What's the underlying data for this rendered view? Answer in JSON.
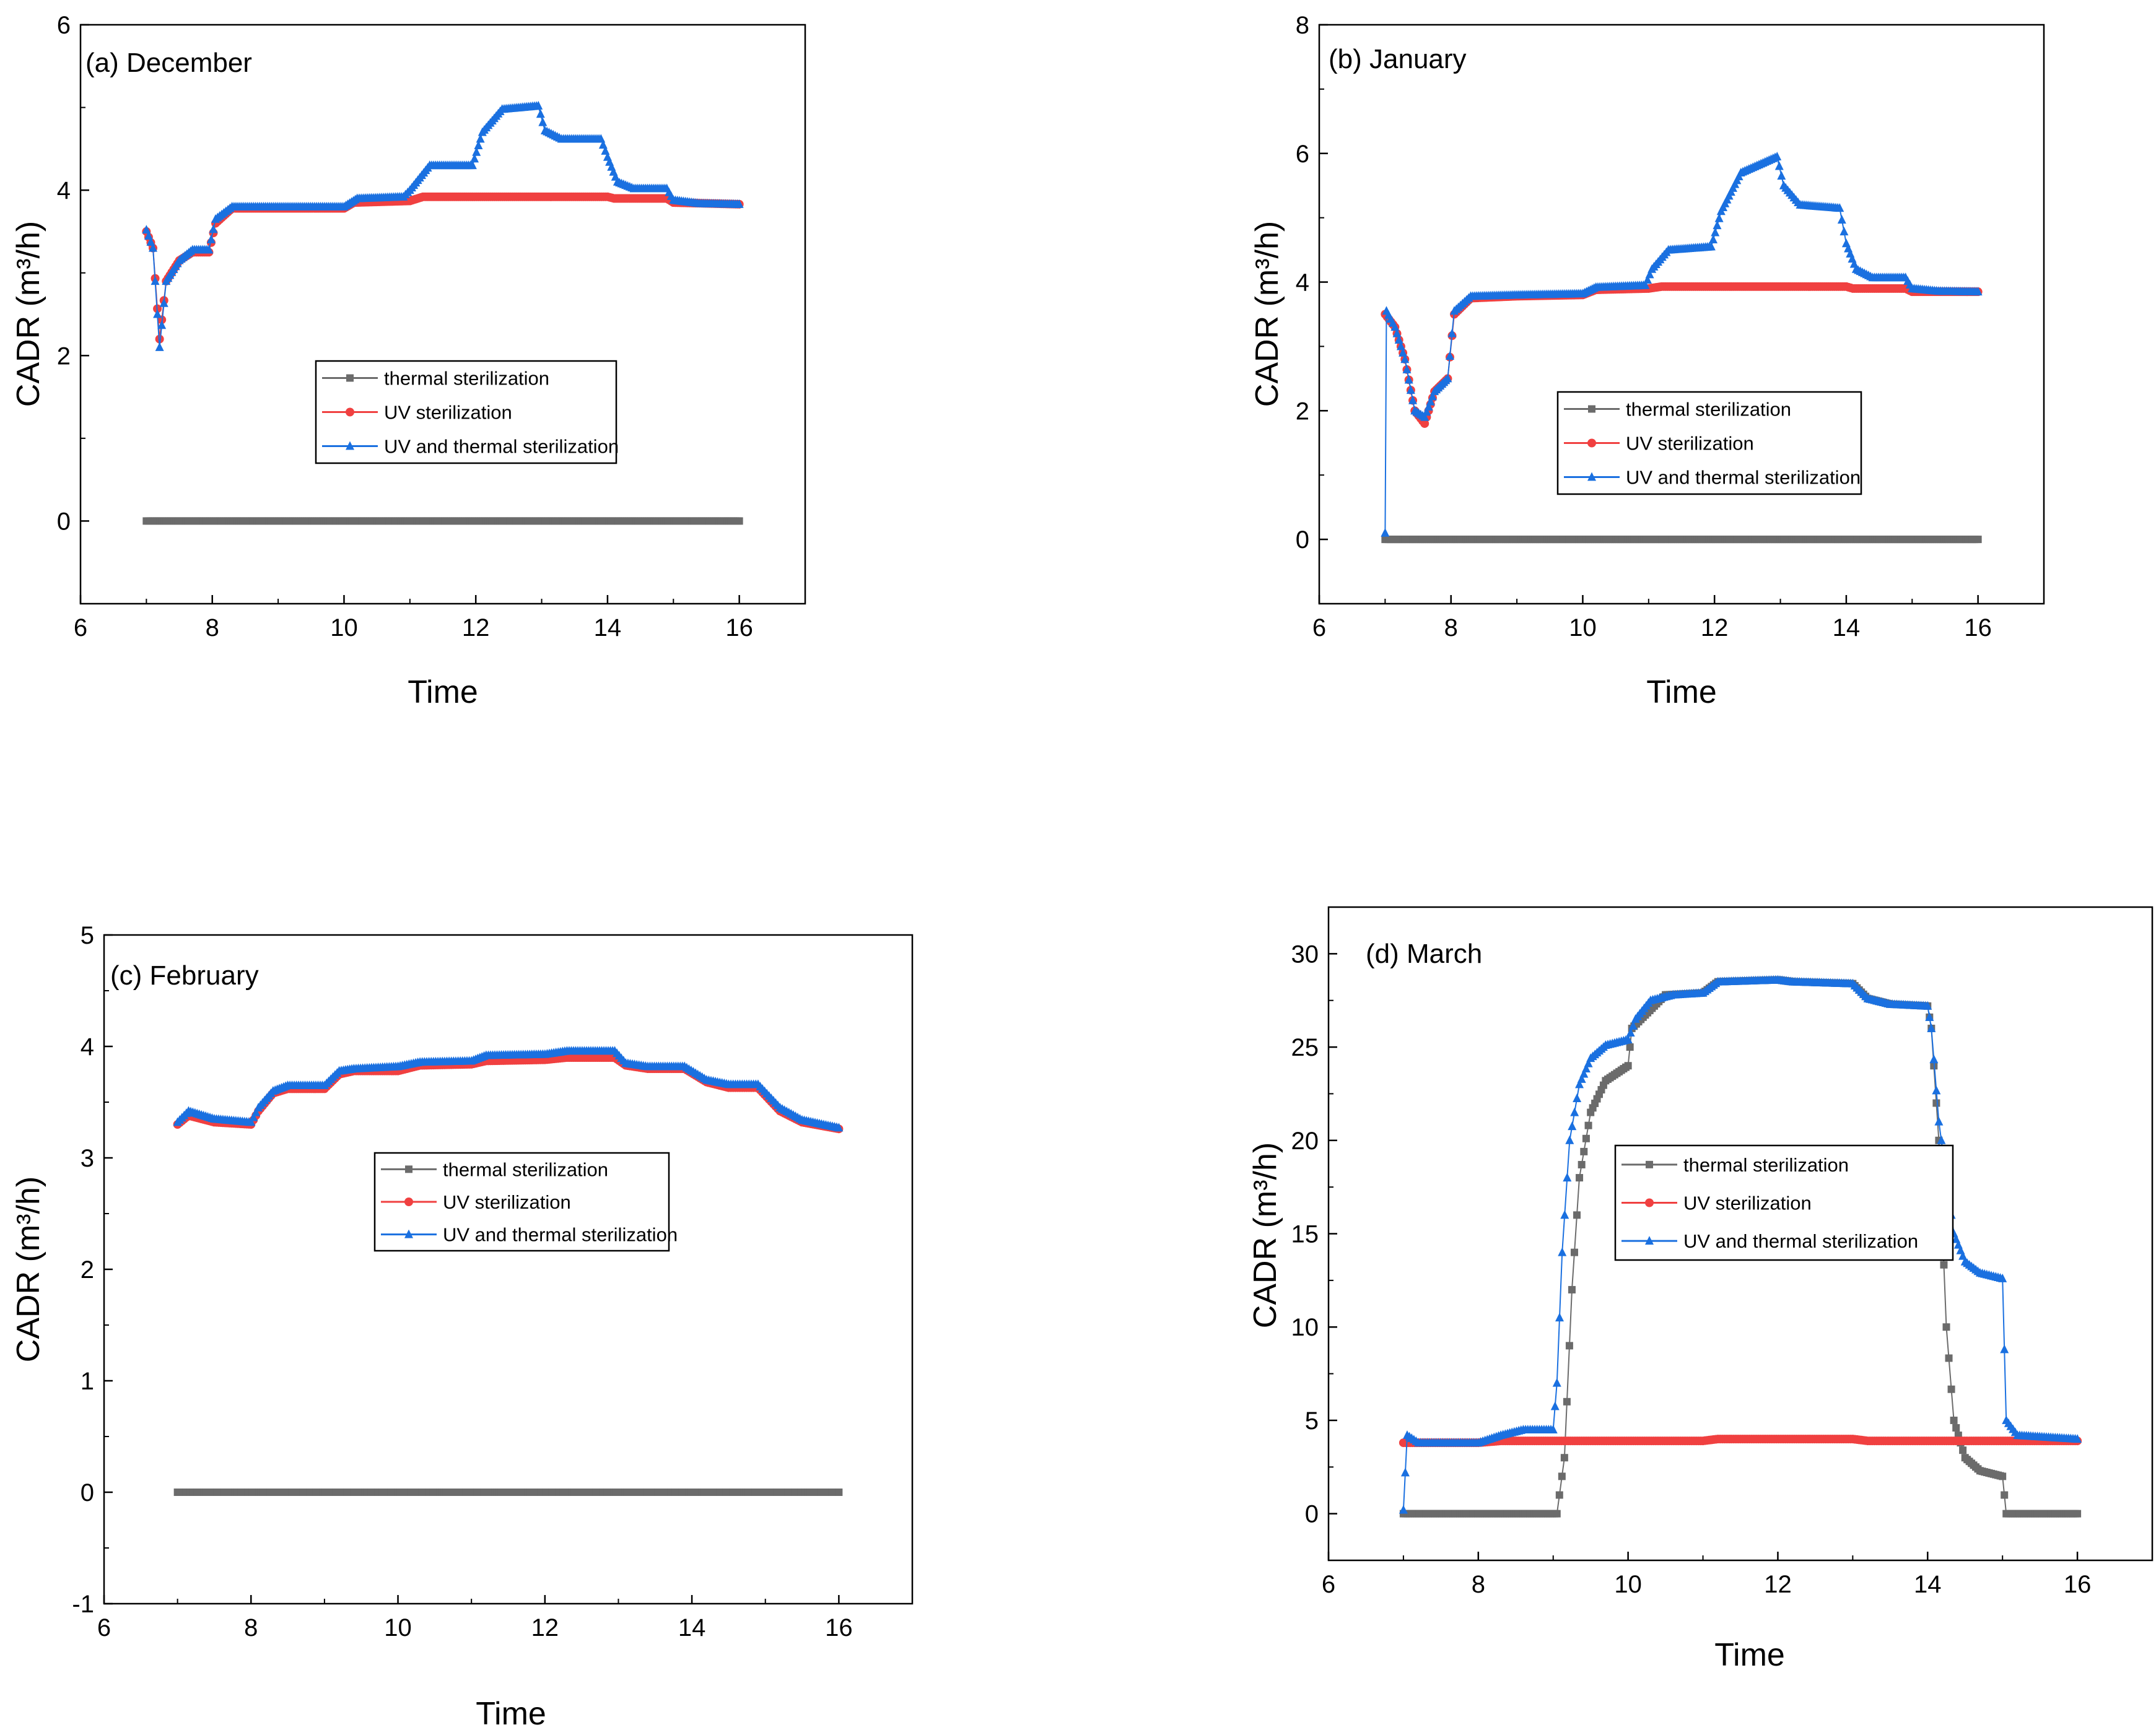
{
  "colors": {
    "thermal": "#6b6b6b",
    "uv": "#f04040",
    "combined": "#1a70e0",
    "axis": "#000000",
    "background": "#ffffff"
  },
  "legend_entries": [
    "thermal sterilization",
    "UV sterilization",
    "UV and thermal sterilization"
  ],
  "chart_data": [
    {
      "id": "december",
      "type": "line",
      "title": "(a) December",
      "xlabel": "Time",
      "ylabel": "CADR  (m³/h)",
      "xlim": [
        6,
        17
      ],
      "ylim": [
        -1,
        6
      ],
      "xticks": [
        6,
        8,
        10,
        12,
        14,
        16
      ],
      "yticks": [
        0,
        2,
        4,
        6
      ],
      "legend": "center",
      "series": [
        {
          "name": "thermal sterilization",
          "marker": "square",
          "points": [
            [
              7,
              0
            ],
            [
              16,
              0
            ]
          ]
        },
        {
          "name": "UV sterilization",
          "marker": "circle",
          "points": [
            [
              7,
              3.5
            ],
            [
              7.1,
              3.3
            ],
            [
              7.2,
              2.2
            ],
            [
              7.3,
              2.9
            ],
            [
              7.5,
              3.15
            ],
            [
              7.7,
              3.25
            ],
            [
              7.95,
              3.25
            ],
            [
              8.05,
              3.6
            ],
            [
              8.3,
              3.78
            ],
            [
              10,
              3.78
            ],
            [
              10.15,
              3.85
            ],
            [
              11,
              3.87
            ],
            [
              11.2,
              3.92
            ],
            [
              14,
              3.92
            ],
            [
              14.1,
              3.9
            ],
            [
              14.9,
              3.9
            ],
            [
              15,
              3.85
            ],
            [
              16,
              3.83
            ]
          ]
        },
        {
          "name": "UV and thermal sterilization",
          "marker": "triangle",
          "points": [
            [
              7,
              3.52
            ],
            [
              7.1,
              3.3
            ],
            [
              7.2,
              2.1
            ],
            [
              7.3,
              2.9
            ],
            [
              7.5,
              3.15
            ],
            [
              7.7,
              3.28
            ],
            [
              7.95,
              3.28
            ],
            [
              8.05,
              3.65
            ],
            [
              8.3,
              3.8
            ],
            [
              10,
              3.8
            ],
            [
              10.2,
              3.9
            ],
            [
              10.9,
              3.92
            ],
            [
              11,
              4.0
            ],
            [
              11.3,
              4.3
            ],
            [
              11.95,
              4.3
            ],
            [
              12.1,
              4.7
            ],
            [
              12.4,
              4.98
            ],
            [
              12.95,
              5.02
            ],
            [
              13.05,
              4.72
            ],
            [
              13.3,
              4.62
            ],
            [
              13.9,
              4.62
            ],
            [
              14,
              4.4
            ],
            [
              14.15,
              4.1
            ],
            [
              14.4,
              4.02
            ],
            [
              14.9,
              4.02
            ],
            [
              15,
              3.88
            ],
            [
              15.4,
              3.84
            ],
            [
              16,
              3.83
            ]
          ]
        }
      ]
    },
    {
      "id": "january",
      "type": "line",
      "title": "(b) January",
      "xlabel": "Time",
      "ylabel": "CADR  (m³/h)",
      "xlim": [
        6,
        17
      ],
      "ylim": [
        -1,
        8
      ],
      "xticks": [
        6,
        8,
        10,
        12,
        14,
        16
      ],
      "yticks": [
        0,
        2,
        4,
        6,
        8
      ],
      "legend": "center-right",
      "series": [
        {
          "name": "thermal sterilization",
          "marker": "square",
          "points": [
            [
              7,
              0
            ],
            [
              16,
              0
            ]
          ]
        },
        {
          "name": "UV sterilization",
          "marker": "circle",
          "points": [
            [
              7,
              3.5
            ],
            [
              7.15,
              3.3
            ],
            [
              7.3,
              2.8
            ],
            [
              7.45,
              2.0
            ],
            [
              7.6,
              1.8
            ],
            [
              7.75,
              2.3
            ],
            [
              7.95,
              2.5
            ],
            [
              8.05,
              3.5
            ],
            [
              8.3,
              3.75
            ],
            [
              9,
              3.78
            ],
            [
              10,
              3.8
            ],
            [
              10.2,
              3.88
            ],
            [
              11,
              3.9
            ],
            [
              11.2,
              3.93
            ],
            [
              14,
              3.93
            ],
            [
              14.1,
              3.9
            ],
            [
              14.9,
              3.9
            ],
            [
              15,
              3.85
            ],
            [
              16,
              3.85
            ]
          ]
        },
        {
          "name": "UV and thermal sterilization",
          "marker": "triangle",
          "points": [
            [
              7,
              0.1
            ],
            [
              7.02,
              3.55
            ],
            [
              7.15,
              3.3
            ],
            [
              7.3,
              2.8
            ],
            [
              7.45,
              2.0
            ],
            [
              7.6,
              1.9
            ],
            [
              7.75,
              2.3
            ],
            [
              7.95,
              2.5
            ],
            [
              8.05,
              3.55
            ],
            [
              8.3,
              3.78
            ],
            [
              9,
              3.8
            ],
            [
              10,
              3.82
            ],
            [
              10.2,
              3.92
            ],
            [
              10.95,
              3.95
            ],
            [
              11.05,
              4.2
            ],
            [
              11.3,
              4.5
            ],
            [
              11.95,
              4.55
            ],
            [
              12.1,
              5.1
            ],
            [
              12.4,
              5.7
            ],
            [
              12.95,
              5.95
            ],
            [
              13.05,
              5.5
            ],
            [
              13.3,
              5.2
            ],
            [
              13.9,
              5.15
            ],
            [
              14,
              4.6
            ],
            [
              14.15,
              4.2
            ],
            [
              14.4,
              4.07
            ],
            [
              14.9,
              4.07
            ],
            [
              15,
              3.9
            ],
            [
              15.4,
              3.86
            ],
            [
              16,
              3.85
            ]
          ]
        }
      ]
    },
    {
      "id": "february",
      "type": "line",
      "title": "(c) February",
      "xlabel": "Time",
      "ylabel": "CADR  (m³/h)",
      "xlim": [
        6,
        17
      ],
      "ylim": [
        -1,
        5
      ],
      "xticks": [
        6,
        8,
        10,
        12,
        14,
        16
      ],
      "yticks": [
        -1,
        0,
        1,
        2,
        3,
        4,
        5
      ],
      "legend": "center",
      "series": [
        {
          "name": "thermal sterilization",
          "marker": "square",
          "points": [
            [
              7,
              0
            ],
            [
              16,
              0
            ]
          ]
        },
        {
          "name": "UV sterilization",
          "marker": "circle",
          "points": [
            [
              7,
              3.3
            ],
            [
              7.15,
              3.38
            ],
            [
              7.5,
              3.32
            ],
            [
              8,
              3.3
            ],
            [
              8.1,
              3.42
            ],
            [
              8.3,
              3.58
            ],
            [
              8.5,
              3.62
            ],
            [
              9,
              3.62
            ],
            [
              9.2,
              3.75
            ],
            [
              9.4,
              3.78
            ],
            [
              10,
              3.78
            ],
            [
              10.3,
              3.83
            ],
            [
              11,
              3.84
            ],
            [
              11.2,
              3.87
            ],
            [
              12,
              3.88
            ],
            [
              12.3,
              3.9
            ],
            [
              12.95,
              3.9
            ],
            [
              13.1,
              3.83
            ],
            [
              13.4,
              3.8
            ],
            [
              13.9,
              3.8
            ],
            [
              14.2,
              3.68
            ],
            [
              14.5,
              3.63
            ],
            [
              14.9,
              3.63
            ],
            [
              15.2,
              3.42
            ],
            [
              15.5,
              3.32
            ],
            [
              16,
              3.26
            ]
          ]
        },
        {
          "name": "UV and thermal sterilization",
          "marker": "triangle",
          "points": [
            [
              7,
              3.32
            ],
            [
              7.15,
              3.42
            ],
            [
              7.5,
              3.35
            ],
            [
              8,
              3.32
            ],
            [
              8.1,
              3.45
            ],
            [
              8.3,
              3.6
            ],
            [
              8.5,
              3.65
            ],
            [
              9,
              3.65
            ],
            [
              9.2,
              3.78
            ],
            [
              9.4,
              3.8
            ],
            [
              10,
              3.82
            ],
            [
              10.3,
              3.86
            ],
            [
              11,
              3.87
            ],
            [
              11.2,
              3.92
            ],
            [
              12,
              3.93
            ],
            [
              12.3,
              3.96
            ],
            [
              12.95,
              3.96
            ],
            [
              13.1,
              3.85
            ],
            [
              13.4,
              3.82
            ],
            [
              13.9,
              3.82
            ],
            [
              14.2,
              3.7
            ],
            [
              14.5,
              3.66
            ],
            [
              14.9,
              3.66
            ],
            [
              15.2,
              3.45
            ],
            [
              15.5,
              3.34
            ],
            [
              16,
              3.27
            ]
          ]
        }
      ]
    },
    {
      "id": "march",
      "type": "line",
      "title": "(d) March",
      "xlabel": "Time",
      "ylabel": "CADR  (m³/h)",
      "xlim": [
        6,
        17
      ],
      "ylim": [
        -2.5,
        32.5
      ],
      "xticks": [
        6,
        8,
        10,
        12,
        14,
        16
      ],
      "yticks": [
        0,
        5,
        10,
        15,
        20,
        25,
        30
      ],
      "legend": "center",
      "series": [
        {
          "name": "thermal sterilization",
          "marker": "square",
          "points": [
            [
              7,
              0
            ],
            [
              9.05,
              0
            ],
            [
              9.15,
              3
            ],
            [
              9.25,
              12
            ],
            [
              9.35,
              18
            ],
            [
              9.5,
              21.5
            ],
            [
              9.7,
              23.2
            ],
            [
              10,
              24
            ],
            [
              10.05,
              26
            ],
            [
              10.5,
              27.8
            ],
            [
              11,
              27.9
            ],
            [
              11.2,
              28.5
            ],
            [
              12,
              28.6
            ],
            [
              12.2,
              28.5
            ],
            [
              13,
              28.4
            ],
            [
              13.2,
              27.6
            ],
            [
              13.5,
              27.3
            ],
            [
              14,
              27.2
            ],
            [
              14.05,
              26
            ],
            [
              14.15,
              20
            ],
            [
              14.25,
              10
            ],
            [
              14.35,
              5
            ],
            [
              14.5,
              3
            ],
            [
              14.7,
              2.3
            ],
            [
              15,
              2
            ],
            [
              15.05,
              0
            ],
            [
              16,
              0
            ]
          ]
        },
        {
          "name": "UV sterilization",
          "marker": "circle",
          "points": [
            [
              7,
              3.8
            ],
            [
              8,
              3.8
            ],
            [
              8.3,
              3.9
            ],
            [
              11,
              3.9
            ],
            [
              11.2,
              4.0
            ],
            [
              13,
              4.0
            ],
            [
              13.2,
              3.9
            ],
            [
              16,
              3.9
            ]
          ]
        },
        {
          "name": "UV and thermal sterilization",
          "marker": "triangle",
          "points": [
            [
              7,
              0.2
            ],
            [
              7.05,
              4.2
            ],
            [
              7.2,
              3.8
            ],
            [
              8,
              3.8
            ],
            [
              8.3,
              4.2
            ],
            [
              8.6,
              4.5
            ],
            [
              9,
              4.5
            ],
            [
              9.05,
              7
            ],
            [
              9.12,
              14
            ],
            [
              9.22,
              20
            ],
            [
              9.35,
              23
            ],
            [
              9.5,
              24.4
            ],
            [
              9.7,
              25.1
            ],
            [
              10,
              25.4
            ],
            [
              10.1,
              26.5
            ],
            [
              10.3,
              27.5
            ],
            [
              10.6,
              27.8
            ],
            [
              11,
              27.9
            ],
            [
              11.2,
              28.5
            ],
            [
              12,
              28.6
            ],
            [
              12.2,
              28.5
            ],
            [
              13,
              28.4
            ],
            [
              13.2,
              27.6
            ],
            [
              13.5,
              27.3
            ],
            [
              14,
              27.2
            ],
            [
              14.05,
              26
            ],
            [
              14.15,
              21
            ],
            [
              14.25,
              18
            ],
            [
              14.35,
              15
            ],
            [
              14.5,
              13.5
            ],
            [
              14.7,
              12.9
            ],
            [
              15,
              12.6
            ],
            [
              15.05,
              5
            ],
            [
              15.2,
              4.2
            ],
            [
              16,
              4.0
            ]
          ]
        }
      ]
    }
  ]
}
